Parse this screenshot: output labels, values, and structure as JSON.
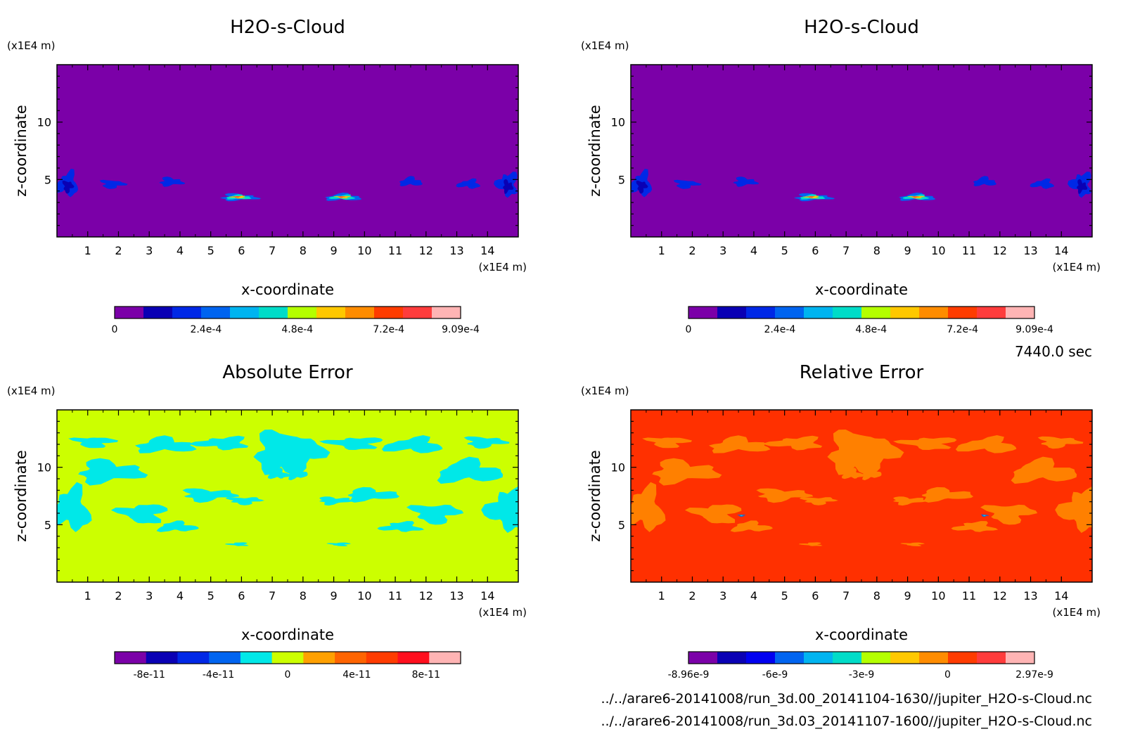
{
  "chart_data": [
    {
      "type": "heatmap",
      "title": "H2O-s-Cloud",
      "xlabel": "x-coordinate",
      "ylabel": "z-coordinate",
      "x_unit": "(x1E4 m)",
      "y_unit": "(x1E4 m)",
      "xlim": [
        0,
        15
      ],
      "ylim": [
        0,
        15
      ],
      "x_ticks": [
        1,
        2,
        3,
        4,
        5,
        6,
        7,
        8,
        9,
        10,
        11,
        12,
        13,
        14
      ],
      "y_ticks": [
        5,
        10
      ],
      "background_level": 0,
      "colorbar": {
        "colors": [
          "#7b00a8",
          "#0a00b4",
          "#0028e6",
          "#0064f0",
          "#00b4f0",
          "#00dcc8",
          "#b4ff00",
          "#ffc800",
          "#ff8c00",
          "#ff3c00",
          "#ff3c3c",
          "#ffb4b4"
        ],
        "labels": [
          "0",
          "2.4e-4",
          "4.8e-4",
          "7.2e-4",
          "9.09e-4"
        ],
        "label_positions": [
          0,
          0.264,
          0.528,
          0.792,
          1.0
        ]
      },
      "features": [
        {
          "x": 0.35,
          "z": 4.5,
          "value": "2.4e-4"
        },
        {
          "x": 1.8,
          "z": 4.6,
          "value": "1.6e-4"
        },
        {
          "x": 3.7,
          "z": 4.8,
          "value": "1.6e-4"
        },
        {
          "x": 5.9,
          "z": 3.5,
          "value": "9.09e-4"
        },
        {
          "x": 9.3,
          "z": 3.5,
          "value": "9.09e-4"
        },
        {
          "x": 11.5,
          "z": 4.8,
          "value": "1.6e-4"
        },
        {
          "x": 13.4,
          "z": 4.6,
          "value": "1.6e-4"
        },
        {
          "x": 14.7,
          "z": 4.5,
          "value": "2.4e-4"
        }
      ]
    },
    {
      "type": "heatmap",
      "title": "H2O-s-Cloud",
      "xlabel": "x-coordinate",
      "ylabel": "z-coordinate",
      "x_unit": "(x1E4 m)",
      "y_unit": "(x1E4 m)",
      "xlim": [
        0,
        15
      ],
      "ylim": [
        0,
        15
      ],
      "x_ticks": [
        1,
        2,
        3,
        4,
        5,
        6,
        7,
        8,
        9,
        10,
        11,
        12,
        13,
        14
      ],
      "y_ticks": [
        5,
        10
      ],
      "background_level": 0,
      "colorbar": {
        "colors": [
          "#7b00a8",
          "#0a00b4",
          "#0028e6",
          "#0064f0",
          "#00b4f0",
          "#00dcc8",
          "#b4ff00",
          "#ffc800",
          "#ff8c00",
          "#ff3c00",
          "#ff3c3c",
          "#ffb4b4"
        ],
        "labels": [
          "0",
          "2.4e-4",
          "4.8e-4",
          "7.2e-4",
          "9.09e-4"
        ],
        "label_positions": [
          0,
          0.264,
          0.528,
          0.792,
          1.0
        ]
      },
      "features": [
        {
          "x": 0.35,
          "z": 4.5,
          "value": "2.4e-4"
        },
        {
          "x": 1.8,
          "z": 4.6,
          "value": "1.6e-4"
        },
        {
          "x": 3.7,
          "z": 4.8,
          "value": "1.6e-4"
        },
        {
          "x": 5.9,
          "z": 3.5,
          "value": "9.09e-4"
        },
        {
          "x": 9.3,
          "z": 3.5,
          "value": "9.09e-4"
        },
        {
          "x": 11.5,
          "z": 4.8,
          "value": "1.6e-4"
        },
        {
          "x": 13.4,
          "z": 4.6,
          "value": "1.6e-4"
        },
        {
          "x": 14.7,
          "z": 4.5,
          "value": "2.4e-4"
        }
      ]
    },
    {
      "type": "heatmap",
      "title": "Absolute Error",
      "xlabel": "x-coordinate",
      "ylabel": "z-coordinate",
      "x_unit": "(x1E4 m)",
      "y_unit": "(x1E4 m)",
      "xlim": [
        0,
        15
      ],
      "ylim": [
        0,
        15
      ],
      "x_ticks": [
        1,
        2,
        3,
        4,
        5,
        6,
        7,
        8,
        9,
        10,
        11,
        12,
        13,
        14
      ],
      "y_ticks": [
        5,
        10
      ],
      "background_color": "#ccff00",
      "patch_color": "#00e8e8",
      "colorbar": {
        "colors": [
          "#7b00a8",
          "#0a00b4",
          "#0028e6",
          "#0064f0",
          "#00e8e8",
          "#ccff00",
          "#ffa000",
          "#ff6400",
          "#ff3c00",
          "#ff0f1e",
          "#ffb4b4"
        ],
        "labels": [
          "-8e-11",
          "-4e-11",
          "0",
          "4e-11",
          "8e-11"
        ],
        "label_positions": [
          0.1,
          0.3,
          0.5,
          0.7,
          0.9
        ]
      },
      "features": [
        {
          "x": 7.8,
          "z": 11.2,
          "value": "-2e-11"
        },
        {
          "x": 3.8,
          "z": 11.8,
          "value": "-2e-11"
        },
        {
          "x": 11.8,
          "z": 11.8,
          "value": "-2e-11"
        },
        {
          "x": 1.5,
          "z": 9.5,
          "value": "-2e-11"
        },
        {
          "x": 13.5,
          "z": 9.5,
          "value": "-2e-11"
        },
        {
          "x": 0.4,
          "z": 6.2,
          "value": "-2e-11"
        },
        {
          "x": 14.6,
          "z": 6.2,
          "value": "-2e-11"
        },
        {
          "x": 5.2,
          "z": 7.6,
          "value": "-2e-11"
        },
        {
          "x": 10.3,
          "z": 7.6,
          "value": "-2e-11"
        }
      ]
    },
    {
      "type": "heatmap",
      "title": "Relative Error",
      "xlabel": "x-coordinate",
      "ylabel": "z-coordinate",
      "x_unit": "(x1E4 m)",
      "y_unit": "(x1E4 m)",
      "xlim": [
        0,
        15
      ],
      "ylim": [
        0,
        15
      ],
      "x_ticks": [
        1,
        2,
        3,
        4,
        5,
        6,
        7,
        8,
        9,
        10,
        11,
        12,
        13,
        14
      ],
      "y_ticks": [
        5,
        10
      ],
      "background_color": "#ff3000",
      "patch_color": "#ff8000",
      "colorbar": {
        "colors": [
          "#7b00a8",
          "#0a00b4",
          "#0000f0",
          "#0064f0",
          "#00b4f0",
          "#00dcc8",
          "#b4ff00",
          "#ffc800",
          "#ff8c00",
          "#ff3c00",
          "#ff3c3c",
          "#ffb4b4"
        ],
        "labels": [
          "-8.96e-9",
          "-6e-9",
          "-3e-9",
          "0",
          "2.97e-9"
        ],
        "label_positions": [
          0,
          0.25,
          0.5,
          0.749,
          1.0
        ]
      },
      "features": [
        {
          "x": 7.8,
          "z": 11.2,
          "value": "-1e-9"
        },
        {
          "x": 3.8,
          "z": 11.8,
          "value": "-1e-9"
        },
        {
          "x": 11.8,
          "z": 11.8,
          "value": "-1e-9"
        },
        {
          "x": 1.5,
          "z": 9.5,
          "value": "-1e-9"
        },
        {
          "x": 13.5,
          "z": 9.5,
          "value": "-1e-9"
        },
        {
          "x": 0.4,
          "z": 6.2,
          "value": "-1e-9"
        },
        {
          "x": 14.6,
          "z": 6.2,
          "value": "-1e-9"
        },
        {
          "x": 3.6,
          "z": 5.8,
          "value": "-6e-9"
        },
        {
          "x": 11.5,
          "z": 5.8,
          "value": "-6e-9"
        }
      ]
    }
  ],
  "time_label": "7440.0 sec",
  "file_paths": [
    "../../arare6-20141008/run_3d.00_20141104-1630//jupiter_H2O-s-Cloud.nc",
    "../../arare6-20141008/run_3d.03_20141107-1600//jupiter_H2O-s-Cloud.nc"
  ]
}
